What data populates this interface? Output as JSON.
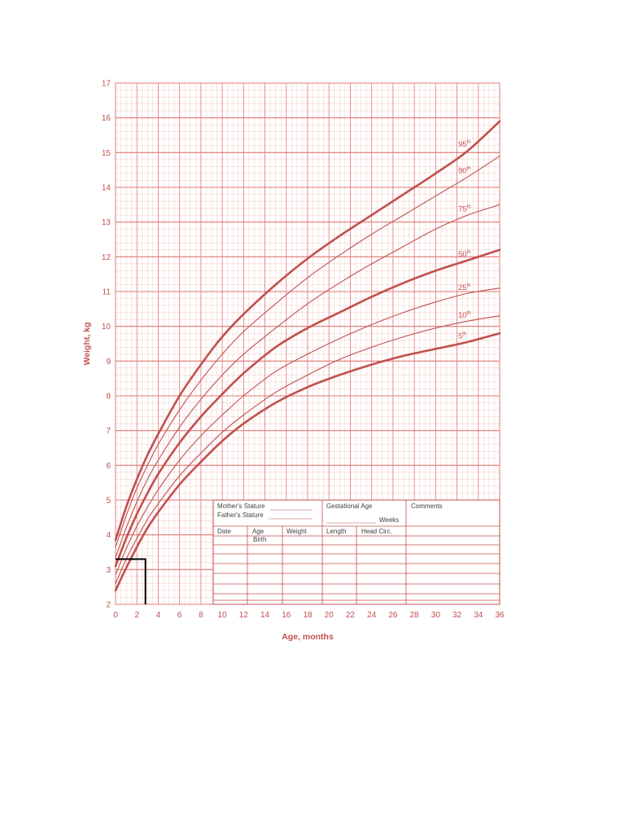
{
  "chart_data": {
    "type": "line",
    "xlabel": "Age, months",
    "ylabel": "Weight, kg",
    "xlim": [
      0,
      36
    ],
    "ylim": [
      2,
      17
    ],
    "x_ticks": [
      0,
      2,
      4,
      6,
      8,
      10,
      12,
      14,
      16,
      18,
      20,
      22,
      24,
      26,
      28,
      30,
      32,
      34,
      36
    ],
    "y_ticks": [
      2,
      3,
      4,
      5,
      6,
      7,
      8,
      9,
      10,
      11,
      12,
      13,
      14,
      15,
      16,
      17
    ],
    "grid": true,
    "x": [
      0,
      1,
      2,
      3,
      4,
      6,
      8,
      10,
      12,
      15,
      18,
      21,
      24,
      27,
      30,
      33,
      36
    ],
    "series": [
      {
        "name": "95",
        "label_suffix": "th",
        "bold": true,
        "values": [
          3.85,
          4.8,
          5.6,
          6.3,
          6.9,
          8.0,
          8.9,
          9.7,
          10.35,
          11.2,
          11.95,
          12.6,
          13.2,
          13.8,
          14.4,
          15.05,
          15.9
        ]
      },
      {
        "name": "90",
        "label_suffix": "th",
        "bold": false,
        "values": [
          3.65,
          4.55,
          5.35,
          6.0,
          6.6,
          7.6,
          8.45,
          9.2,
          9.85,
          10.65,
          11.4,
          12.05,
          12.65,
          13.2,
          13.75,
          14.3,
          14.9
        ]
      },
      {
        "name": "75",
        "label_suffix": "th",
        "bold": false,
        "values": [
          3.35,
          4.2,
          4.95,
          5.6,
          6.15,
          7.1,
          7.9,
          8.6,
          9.2,
          9.95,
          10.65,
          11.25,
          11.8,
          12.3,
          12.8,
          13.2,
          13.5
        ]
      },
      {
        "name": "50",
        "label_suffix": "th",
        "bold": true,
        "values": [
          3.1,
          3.9,
          4.6,
          5.2,
          5.75,
          6.65,
          7.4,
          8.05,
          8.65,
          9.4,
          9.95,
          10.4,
          10.85,
          11.25,
          11.6,
          11.9,
          12.2
        ]
      },
      {
        "name": "25",
        "label_suffix": "th",
        "bold": false,
        "values": [
          2.85,
          3.6,
          4.25,
          4.8,
          5.3,
          6.15,
          6.85,
          7.45,
          8.0,
          8.7,
          9.2,
          9.65,
          10.05,
          10.4,
          10.7,
          10.95,
          11.1
        ]
      },
      {
        "name": "10",
        "label_suffix": "th",
        "bold": false,
        "values": [
          2.6,
          3.3,
          3.9,
          4.45,
          4.9,
          5.7,
          6.35,
          6.95,
          7.45,
          8.1,
          8.6,
          9.05,
          9.4,
          9.7,
          9.95,
          10.15,
          10.3
        ]
      },
      {
        "name": "5",
        "label_suffix": "th",
        "bold": true,
        "values": [
          2.4,
          3.05,
          3.65,
          4.2,
          4.65,
          5.45,
          6.1,
          6.7,
          7.2,
          7.8,
          8.25,
          8.6,
          8.9,
          9.15,
          9.35,
          9.55,
          9.8
        ]
      }
    ],
    "marked_point": {
      "x": 2.8,
      "y": 3.3
    }
  },
  "table": {
    "mothers_stature": "Mother's Stature",
    "fathers_stature": "Father's Stature",
    "gestational_age": "Gestational Age",
    "weeks": "Weeks",
    "comments": "Comments",
    "headers": [
      "Date",
      "Age",
      "Weight",
      "Length",
      "Head Circ."
    ],
    "first_row_age": "Birth"
  },
  "colors": {
    "line": "#c0504d",
    "grid_minor": "#f4c7c5",
    "grid_major": "#e07874",
    "marker": "#000000"
  }
}
